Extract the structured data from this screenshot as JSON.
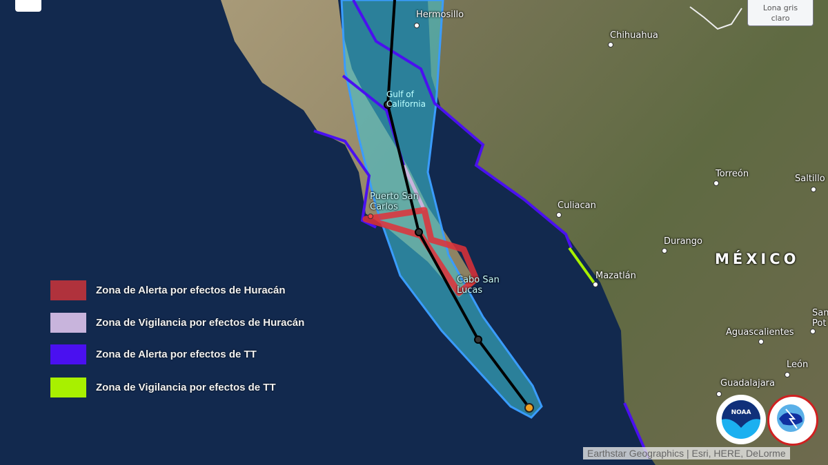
{
  "basemap_button": {
    "label_line1": "Lona gris",
    "label_line2": "claro"
  },
  "cities": {
    "hermosillo": "Hermosillo",
    "chihuahua": "Chihuahua",
    "gulf_line1": "Gulf of",
    "gulf_line2": "California",
    "torreon": "Torreón",
    "saltillo": "Saltillo",
    "culiacan": "Culiacan",
    "durango": "Durango",
    "mazatlan": "Mazatlán",
    "puerto_line1": "Puerto San",
    "puerto_line2": "Carlos",
    "cabo_line1": "Cabo San",
    "cabo_line2": "Lucas",
    "aguascalientes": "Aguascalientes",
    "leon": "León",
    "guadalajara": "Guadalajara",
    "slp_line1": "San",
    "slp_line2": "Pot"
  },
  "country_label": "MÉXICO",
  "legend": [
    {
      "label": "Zona de Alerta por efectos de Huracán",
      "color": "#b0323c"
    },
    {
      "label": "Zona de Vigilancia por efectos de Huracán",
      "color": "#c8b4dc"
    },
    {
      "label": "Zona de Alerta por efectos de TT",
      "color": "#4a10f0"
    },
    {
      "label": "Zona de Vigilancia por efectos de TT",
      "color": "#a8f000"
    }
  ],
  "logos": {
    "noaa": "NOAA",
    "nws": "NATIONAL WEATHER SERVICE"
  },
  "attribution": "Earthstar Geographics | Esri, HERE, DeLorme",
  "colors": {
    "ocean": "#12294e",
    "cone": "#40c8d8",
    "cone_outline": "#3a9cff",
    "track": "#000000"
  }
}
